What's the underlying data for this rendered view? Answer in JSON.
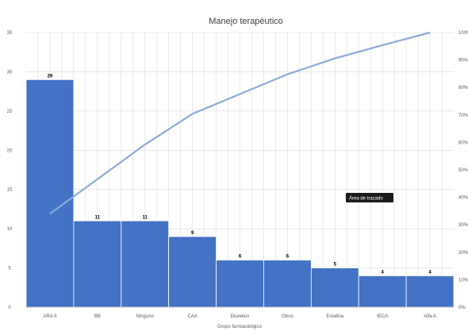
{
  "chart_data": {
    "type": "bar",
    "title": "Manejo terapéutico",
    "xlabel": "Grupo farmacológico",
    "ylabel": "",
    "categories": [
      "ARA II",
      "BB",
      "Ninguno",
      "CAA",
      "Diuretico",
      "Otros",
      "Estatina",
      "IECA",
      "Alfa A"
    ],
    "series": [
      {
        "values": [
          29,
          11,
          11,
          9,
          6,
          6,
          5,
          4,
          4
        ]
      },
      {
        "values": [
          34,
          46.6,
          59.2,
          70.4,
          77.6,
          84.8,
          90.6,
          95.4,
          100
        ],
        "axis": "secondary",
        "type": "line"
      }
    ],
    "ylim": [
      0,
      35
    ],
    "y_ticks": [
      "0",
      "5",
      "10",
      "15",
      "20",
      "25",
      "30",
      "35"
    ],
    "y2lim": [
      0,
      100
    ],
    "y2_ticks": [
      "0%",
      "10%",
      "20%",
      "30%",
      "40%",
      "50%",
      "60%",
      "70%",
      "80%",
      "90%",
      "100%"
    ],
    "data_labels": [
      "29",
      "11",
      "11",
      "9",
      "6",
      "6",
      "5",
      "4",
      "4"
    ],
    "grid": true,
    "tooltip": "Área de trazado",
    "colors": {
      "bar": "#4472C4",
      "line": "#8EA9DB",
      "grid": "#D9D9D9",
      "tooltip_bg": "#1a1a1a"
    }
  }
}
